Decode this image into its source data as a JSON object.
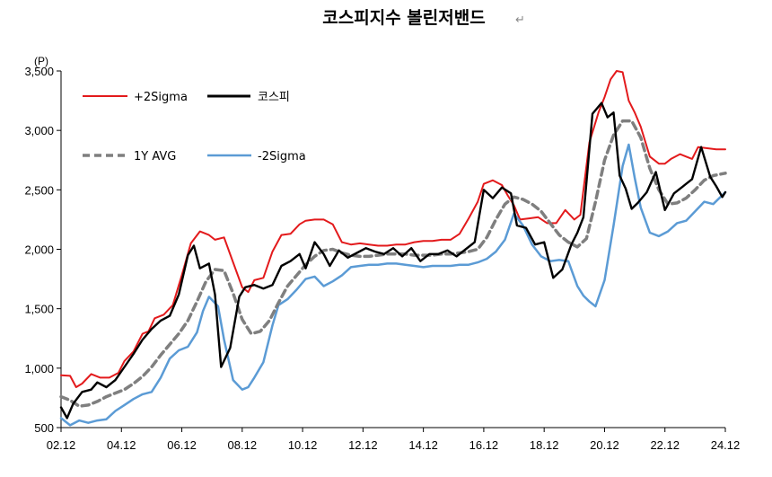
{
  "chart_data": {
    "type": "line",
    "title": "코스피지수 볼린저밴드",
    "title_mark": "↵",
    "ylabel": "(P)",
    "xlabel": "",
    "ylim": [
      500,
      3500
    ],
    "yticks": [
      "500",
      "1,000",
      "1,500",
      "2,000",
      "2,500",
      "3,000",
      "3,500"
    ],
    "xticks": [
      "02.12",
      "04.12",
      "06.12",
      "08.12",
      "10.12",
      "12.12",
      "14.12",
      "16.12",
      "18.12",
      "20.12",
      "22.12",
      "24.12"
    ],
    "xlim": [
      2002.9,
      2024.9
    ],
    "grid": false,
    "legend_position": "top-left",
    "colors": {
      "upper": "#e31a1c",
      "kospi": "#000000",
      "avg": "#7f7f7f",
      "lower": "#5b9bd5"
    },
    "series": [
      {
        "name": "+2Sigma",
        "key": "upper",
        "x": [
          2002.9,
          2003.2,
          2003.4,
          2003.6,
          2003.9,
          2004.2,
          2004.5,
          2004.8,
          2005.0,
          2005.3,
          2005.6,
          2005.8,
          2006.0,
          2006.3,
          2006.6,
          2006.9,
          2007.2,
          2007.5,
          2007.8,
          2008.0,
          2008.3,
          2008.6,
          2008.9,
          2009.1,
          2009.3,
          2009.6,
          2009.9,
          2010.2,
          2010.5,
          2010.8,
          2011.0,
          2011.3,
          2011.6,
          2011.9,
          2012.2,
          2012.5,
          2012.8,
          2013.1,
          2013.4,
          2013.7,
          2014.0,
          2014.3,
          2014.6,
          2014.9,
          2015.2,
          2015.5,
          2015.8,
          2016.1,
          2016.4,
          2016.7,
          2016.9,
          2017.2,
          2017.5,
          2017.7,
          2017.9,
          2018.1,
          2018.4,
          2018.7,
          2019.0,
          2019.3,
          2019.6,
          2019.9,
          2020.1,
          2020.4,
          2020.7,
          2020.9,
          2021.1,
          2021.3,
          2021.5,
          2021.7,
          2021.9,
          2022.1,
          2022.4,
          2022.7,
          2022.9,
          2023.1,
          2023.4,
          2023.6,
          2023.8,
          2024.0,
          2024.3,
          2024.6,
          2024.9
        ],
        "values": [
          940,
          935,
          840,
          870,
          950,
          920,
          920,
          960,
          1060,
          1140,
          1290,
          1310,
          1420,
          1450,
          1530,
          1780,
          2050,
          2150,
          2120,
          2080,
          2100,
          1890,
          1680,
          1640,
          1740,
          1760,
          1980,
          2120,
          2130,
          2210,
          2240,
          2250,
          2250,
          2210,
          2060,
          2040,
          2050,
          2040,
          2030,
          2030,
          2040,
          2040,
          2060,
          2070,
          2070,
          2080,
          2080,
          2130,
          2260,
          2400,
          2550,
          2580,
          2540,
          2450,
          2370,
          2250,
          2260,
          2270,
          2220,
          2220,
          2330,
          2250,
          2290,
          2900,
          3150,
          3280,
          3430,
          3550,
          3490,
          3250,
          3150,
          3030,
          2780,
          2720,
          2720,
          2760,
          2800,
          2780,
          2760,
          2860,
          2850,
          2840,
          2840
        ]
      },
      {
        "name": "코스피",
        "key": "kospi",
        "x": [
          2002.9,
          2003.1,
          2003.3,
          2003.6,
          2003.9,
          2004.1,
          2004.4,
          2004.7,
          2005.0,
          2005.3,
          2005.6,
          2005.9,
          2006.2,
          2006.5,
          2006.8,
          2007.1,
          2007.3,
          2007.5,
          2007.8,
          2008.0,
          2008.2,
          2008.5,
          2008.8,
          2009.0,
          2009.3,
          2009.6,
          2009.9,
          2010.2,
          2010.5,
          2010.8,
          2011.0,
          2011.3,
          2011.6,
          2011.8,
          2012.1,
          2012.4,
          2012.7,
          2013.0,
          2013.3,
          2013.6,
          2013.9,
          2014.2,
          2014.5,
          2014.8,
          2015.1,
          2015.4,
          2015.7,
          2016.0,
          2016.3,
          2016.6,
          2016.9,
          2017.2,
          2017.5,
          2017.8,
          2018.0,
          2018.3,
          2018.6,
          2018.9,
          2019.2,
          2019.5,
          2019.8,
          2020.0,
          2020.2,
          2020.5,
          2020.8,
          2021.0,
          2021.2,
          2021.4,
          2021.6,
          2021.8,
          2022.0,
          2022.3,
          2022.6,
          2022.9,
          2023.2,
          2023.5,
          2023.8,
          2024.1,
          2024.4,
          2024.6,
          2024.8,
          2024.9
        ],
        "values": [
          670,
          580,
          700,
          800,
          820,
          880,
          840,
          900,
          1010,
          1120,
          1240,
          1330,
          1400,
          1440,
          1620,
          1950,
          2030,
          1840,
          1880,
          1620,
          1010,
          1170,
          1600,
          1680,
          1700,
          1670,
          1700,
          1860,
          1900,
          1960,
          1840,
          2060,
          1960,
          1860,
          1990,
          1930,
          1970,
          2010,
          1980,
          1960,
          2010,
          1940,
          2010,
          1900,
          1960,
          1960,
          1990,
          1940,
          2000,
          2060,
          2500,
          2430,
          2520,
          2470,
          2200,
          2180,
          2040,
          2060,
          1760,
          1830,
          2040,
          2140,
          2270,
          3140,
          3230,
          3110,
          3150,
          2620,
          2510,
          2340,
          2390,
          2480,
          2650,
          2330,
          2470,
          2530,
          2590,
          2860,
          2610,
          2530,
          2440,
          2480
        ]
      },
      {
        "name": "1Y AVG",
        "key": "avg",
        "x": [
          2002.9,
          2003.2,
          2003.5,
          2003.8,
          2004.1,
          2004.4,
          2004.7,
          2005.0,
          2005.3,
          2005.6,
          2005.9,
          2006.2,
          2006.5,
          2006.8,
          2007.1,
          2007.4,
          2007.7,
          2008.0,
          2008.3,
          2008.6,
          2008.9,
          2009.2,
          2009.5,
          2009.8,
          2010.1,
          2010.4,
          2010.7,
          2011.0,
          2011.3,
          2011.6,
          2011.9,
          2012.2,
          2012.5,
          2012.8,
          2013.1,
          2013.4,
          2013.7,
          2014.0,
          2014.3,
          2014.6,
          2014.9,
          2015.2,
          2015.5,
          2015.8,
          2016.1,
          2016.4,
          2016.7,
          2017.0,
          2017.3,
          2017.6,
          2017.9,
          2018.2,
          2018.5,
          2018.8,
          2019.1,
          2019.4,
          2019.7,
          2020.0,
          2020.3,
          2020.6,
          2020.9,
          2021.2,
          2021.5,
          2021.8,
          2022.1,
          2022.4,
          2022.7,
          2023.0,
          2023.3,
          2023.6,
          2023.9,
          2024.2,
          2024.5,
          2024.9
        ],
        "values": [
          760,
          730,
          680,
          690,
          720,
          760,
          790,
          820,
          870,
          930,
          1010,
          1110,
          1200,
          1290,
          1400,
          1560,
          1730,
          1830,
          1820,
          1630,
          1410,
          1290,
          1310,
          1400,
          1550,
          1690,
          1780,
          1870,
          1940,
          1990,
          2000,
          1970,
          1950,
          1940,
          1940,
          1950,
          1960,
          1960,
          1960,
          1950,
          1950,
          1950,
          1960,
          1960,
          1970,
          1980,
          2000,
          2100,
          2250,
          2380,
          2440,
          2420,
          2380,
          2320,
          2220,
          2120,
          2060,
          2020,
          2090,
          2400,
          2750,
          2960,
          3080,
          3080,
          2940,
          2680,
          2500,
          2380,
          2390,
          2430,
          2500,
          2580,
          2620,
          2640
        ]
      },
      {
        "name": "-2Sigma",
        "key": "lower",
        "x": [
          2002.9,
          2003.2,
          2003.5,
          2003.8,
          2004.1,
          2004.4,
          2004.7,
          2005.0,
          2005.3,
          2005.6,
          2005.9,
          2006.2,
          2006.5,
          2006.8,
          2007.1,
          2007.4,
          2007.6,
          2007.8,
          2008.1,
          2008.3,
          2008.6,
          2008.9,
          2009.1,
          2009.3,
          2009.6,
          2009.9,
          2010.1,
          2010.4,
          2010.7,
          2011.0,
          2011.3,
          2011.6,
          2011.9,
          2012.2,
          2012.5,
          2012.8,
          2013.1,
          2013.4,
          2013.7,
          2014.0,
          2014.3,
          2014.6,
          2014.9,
          2015.2,
          2015.5,
          2015.8,
          2016.1,
          2016.4,
          2016.7,
          2017.0,
          2017.3,
          2017.6,
          2017.9,
          2018.2,
          2018.5,
          2018.8,
          2019.1,
          2019.4,
          2019.7,
          2020.0,
          2020.2,
          2020.4,
          2020.6,
          2020.9,
          2021.2,
          2021.5,
          2021.7,
          2021.9,
          2022.1,
          2022.4,
          2022.7,
          2023.0,
          2023.3,
          2023.6,
          2023.9,
          2024.2,
          2024.5,
          2024.9
        ],
        "values": [
          580,
          520,
          560,
          540,
          560,
          570,
          640,
          690,
          740,
          780,
          800,
          920,
          1080,
          1150,
          1180,
          1300,
          1480,
          1600,
          1520,
          1240,
          900,
          820,
          840,
          920,
          1050,
          1360,
          1530,
          1580,
          1660,
          1750,
          1770,
          1690,
          1730,
          1780,
          1850,
          1860,
          1870,
          1870,
          1880,
          1880,
          1870,
          1860,
          1850,
          1860,
          1860,
          1860,
          1870,
          1870,
          1890,
          1920,
          1980,
          2080,
          2300,
          2200,
          2040,
          1940,
          1900,
          1910,
          1900,
          1690,
          1610,
          1560,
          1520,
          1740,
          2200,
          2700,
          2880,
          2600,
          2350,
          2140,
          2110,
          2150,
          2220,
          2240,
          2320,
          2400,
          2380,
          2480
        ]
      }
    ]
  }
}
